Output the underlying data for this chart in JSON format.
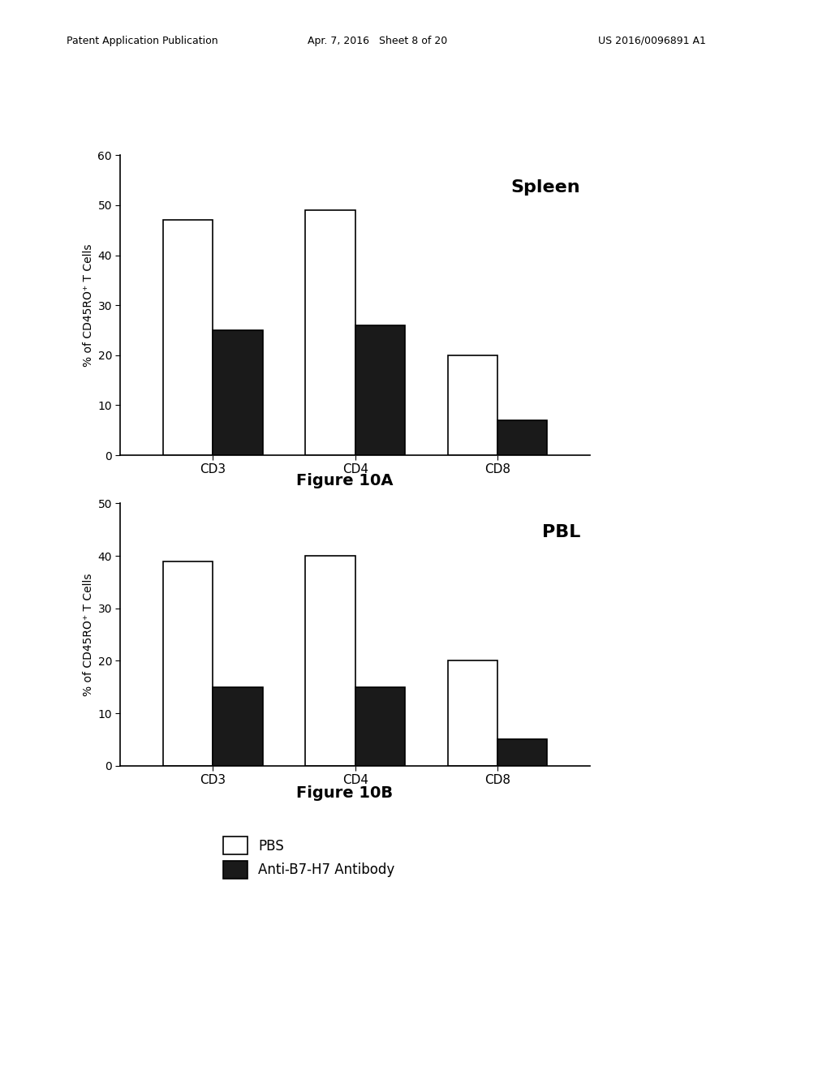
{
  "header_left": "Patent Application Publication",
  "header_mid": "Apr. 7, 2016   Sheet 8 of 20",
  "header_right": "US 2016/0096891 A1",
  "top_chart": {
    "title": "Spleen",
    "categories": [
      "CD3",
      "CD4",
      "CD8"
    ],
    "pbs_values": [
      47,
      49,
      20
    ],
    "antibody_values": [
      25,
      26,
      7
    ],
    "ylim": [
      0,
      60
    ],
    "yticks": [
      0,
      10,
      20,
      30,
      40,
      50,
      60
    ],
    "ylabel": "% of CD45RO⁺ T Cells",
    "figure_label": "Figure 10A"
  },
  "bottom_chart": {
    "title": "PBL",
    "categories": [
      "CD3",
      "CD4",
      "CD8"
    ],
    "pbs_values": [
      39,
      40,
      20
    ],
    "antibody_values": [
      15,
      15,
      5
    ],
    "ylim": [
      0,
      50
    ],
    "yticks": [
      0,
      10,
      20,
      30,
      40,
      50
    ],
    "ylabel": "% of CD45RO⁺ T Cells",
    "figure_label": "Figure 10B"
  },
  "legend_labels": [
    "PBS",
    "Anti-B7-H7 Antibody"
  ],
  "pbs_color": "#ffffff",
  "antibody_color": "#1a1a1a",
  "bar_edge_color": "#000000",
  "bar_width": 0.35,
  "background_color": "#ffffff",
  "text_color": "#000000"
}
